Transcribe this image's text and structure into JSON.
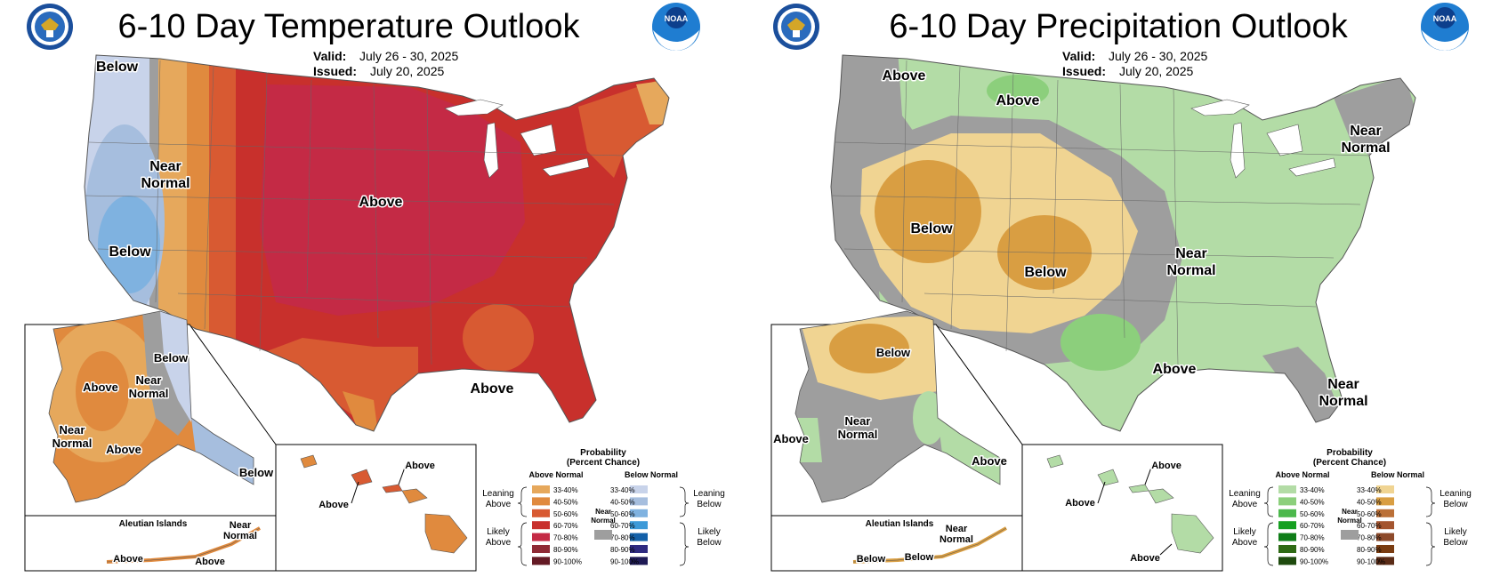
{
  "temperature": {
    "title": "6-10 Day Temperature Outlook",
    "valid_label": "Valid:",
    "valid_value": "July 26 - 30, 2025",
    "issued_label": "Issued:",
    "issued_value": "July 20, 2025",
    "map_labels": {
      "below_nw": "Below",
      "near_normal": "Near Normal",
      "above_main": "Above",
      "below_ca": "Below",
      "above_south": "Above"
    },
    "alaska_labels": {
      "below": "Below",
      "above_west": "Above",
      "near_normal_east": "Near Normal",
      "near_normal_sw": "Near Normal",
      "above_south": "Above",
      "below_se": "Below"
    },
    "aleutian_title": "Aleutian Islands",
    "aleutian_labels": {
      "near_normal": "Near Normal",
      "above_1": "Above",
      "above_2": "Above"
    },
    "hawaii_labels": {
      "above_ne": "Above",
      "above_sw": "Above"
    },
    "legend": {
      "title": "Probability (Percent Chance)",
      "left_header": "Above Normal",
      "right_header": "Below Normal",
      "near_normal": "Near Normal",
      "group_top_left": "Leaning Above",
      "group_bottom_left": "Likely Above",
      "group_top_right": "Leaning Below",
      "group_bottom_right": "Likely Below",
      "ranges": [
        "33-40%",
        "40-50%",
        "50-60%",
        "60-70%",
        "70-80%",
        "80-90%",
        "90-100%"
      ],
      "left_colors": [
        "#e6a85c",
        "#e08a3e",
        "#d85a32",
        "#c8302c",
        "#c42a45",
        "#8f2a35",
        "#641a24"
      ],
      "right_colors": [
        "#c8d3ea",
        "#a6bede",
        "#7fb2e0",
        "#3d9ad8",
        "#1360a8",
        "#2e2a80",
        "#1e1a55"
      ]
    }
  },
  "precipitation": {
    "title": "6-10 Day Precipitation Outlook",
    "valid_label": "Valid:",
    "valid_value": "July 26 - 30, 2025",
    "issued_label": "Issued:",
    "issued_value": "July 20, 2025",
    "map_labels": {
      "above_nw": "Above",
      "above_north": "Above",
      "near_normal_ne": "Near Normal",
      "below_west": "Below",
      "below_center": "Below",
      "near_normal_mid": "Near Normal",
      "above_tx": "Above",
      "near_normal_fl": "Near Normal"
    },
    "alaska_labels": {
      "below": "Below",
      "near_normal": "Near Normal",
      "above_west": "Above",
      "above_se": "Above"
    },
    "aleutian_title": "Aleutian Islands",
    "aleutian_labels": {
      "near_normal": "Near Normal",
      "below_1": "Below",
      "below_2": "Below"
    },
    "hawaii_labels": {
      "above_ne": "Above",
      "above_w": "Above",
      "above_s": "Above"
    },
    "legend": {
      "title": "Probability (Percent Chance)",
      "left_header": "Above Normal",
      "right_header": "Below Normal",
      "near_normal": "Near Normal",
      "group_top_left": "Leaning Above",
      "group_bottom_left": "Likely Above",
      "group_top_right": "Leaning Below",
      "group_bottom_right": "Likely Below",
      "ranges": [
        "33-40%",
        "40-50%",
        "50-60%",
        "60-70%",
        "70-80%",
        "80-90%",
        "90-100%"
      ],
      "left_colors": [
        "#b3dca6",
        "#8ccf7c",
        "#4cb84c",
        "#16a021",
        "#0f7d18",
        "#2e6a14",
        "#1e4a0e"
      ],
      "right_colors": [
        "#f0d492",
        "#d99e42",
        "#bb7037",
        "#a4552f",
        "#8d4a2a",
        "#7a3c11",
        "#5a2b16"
      ]
    }
  },
  "colors": {
    "near_normal": "#9e9e9e",
    "above_light": "#e6a85c",
    "above_med": "#e08a3e",
    "above_50": "#d85a32",
    "above_60": "#c8302c",
    "above_70": "#c42a45",
    "below_light": "#c8d3ea",
    "below_med": "#a6bede",
    "below_50": "#7fb2e0",
    "wet_light": "#b3dca6",
    "wet_med": "#8ccf7c",
    "dry_light": "#f0d492",
    "dry_med": "#d99e42"
  }
}
